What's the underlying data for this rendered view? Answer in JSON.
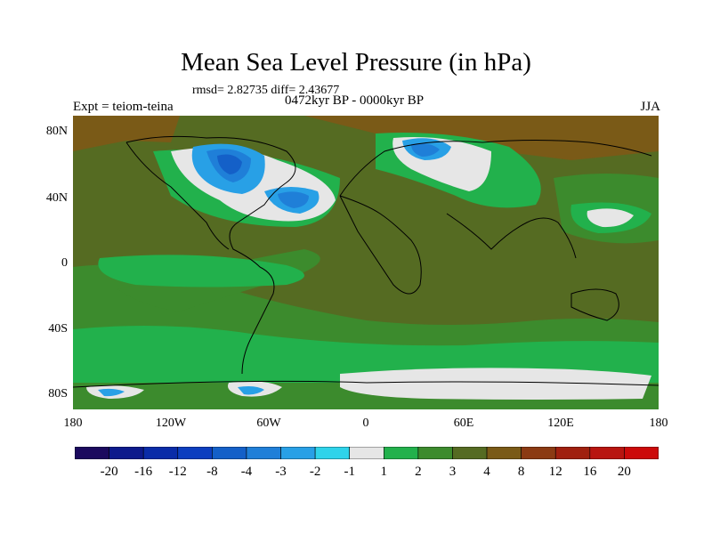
{
  "title": "Mean Sea Level Pressure (in hPa)",
  "stats": "rmsd= 2.82735 diff= 2.43677",
  "left_label": "Expt = teiom-teina",
  "center_label": "0472kyr BP - 0000kyr BP",
  "right_label": "JJA",
  "lat_ticks": [
    "80N",
    "40N",
    "0",
    "40S",
    "80S"
  ],
  "lon_ticks": [
    "180",
    "120W",
    "60W",
    "0",
    "60E",
    "120E",
    "180"
  ],
  "colorbar": {
    "labels": [
      "-20",
      "-16",
      "-12",
      "-8",
      "-4",
      "-3",
      "-2",
      "-1",
      "1",
      "2",
      "3",
      "4",
      "8",
      "12",
      "16",
      "20"
    ],
    "colors": [
      "#1b0a5e",
      "#0d1a8c",
      "#0a2ca8",
      "#0c3ebf",
      "#1460c8",
      "#1f7fd8",
      "#28a0e6",
      "#2fd3ea",
      "#e6e6e6",
      "#22b14c",
      "#3c8b2d",
      "#556b22",
      "#7a5a17",
      "#8b3a13",
      "#a0200f",
      "#b81510",
      "#cc0a0a"
    ]
  },
  "regions": {
    "background_color": "#556b22",
    "green_color": "#3c8b2d",
    "light_green_color": "#22b14c",
    "white_color": "#e6e6e6",
    "light_blue_color": "#28a0e6",
    "blue_color": "#1f7fd8",
    "dark_blue_color": "#1460c8",
    "brown_color": "#7a5a17"
  }
}
